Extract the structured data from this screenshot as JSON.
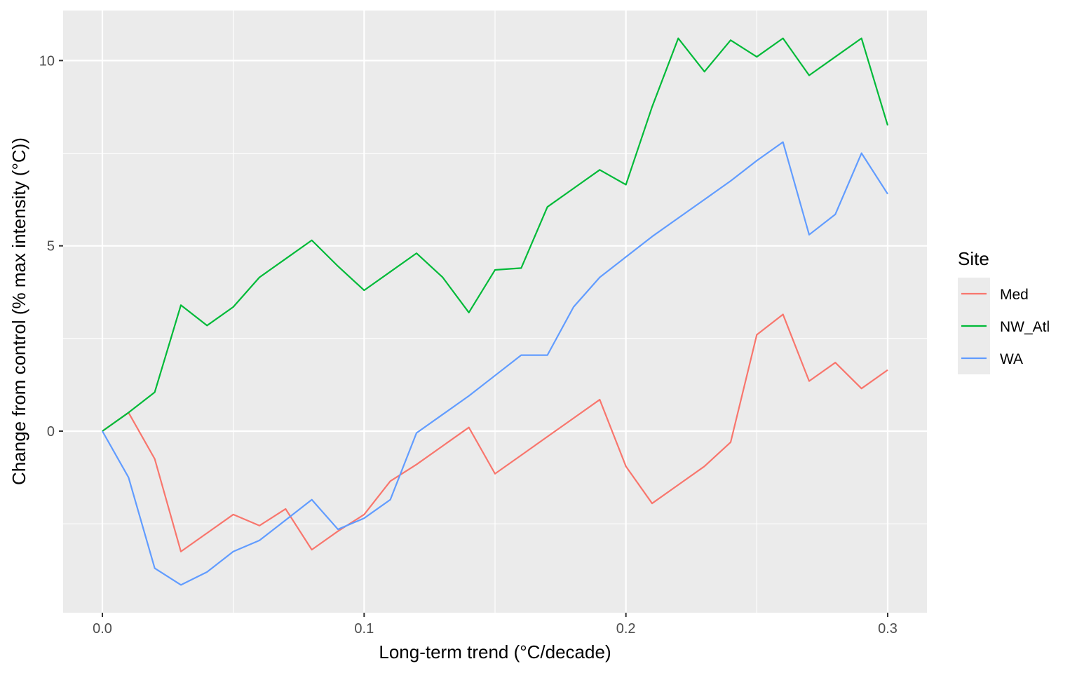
{
  "chart_data": {
    "type": "line",
    "xlabel": "Long-term trend (°C/decade)",
    "ylabel": "Change from control (% max intensity (°C))",
    "xlim": [
      -0.015,
      0.315
    ],
    "ylim": [
      -4.9,
      11.35
    ],
    "x_ticks": [
      0.0,
      0.1,
      0.2,
      0.3
    ],
    "x_tick_labels": [
      "0.0",
      "0.1",
      "0.2",
      "0.3"
    ],
    "y_ticks": [
      0,
      5,
      10
    ],
    "y_tick_labels": [
      "0",
      "5",
      "10"
    ],
    "x_minor_ticks": [
      0.05,
      0.15,
      0.25
    ],
    "y_minor_ticks": [
      -2.5,
      2.5,
      7.5
    ],
    "grid": true,
    "panel_background": "#ebebeb",
    "legend": {
      "title": "Site",
      "position": "right"
    },
    "x": [
      0.0,
      0.01,
      0.02,
      0.03,
      0.04,
      0.05,
      0.06,
      0.07,
      0.08,
      0.09,
      0.1,
      0.11,
      0.12,
      0.13,
      0.14,
      0.15,
      0.16,
      0.17,
      0.18,
      0.19,
      0.2,
      0.21,
      0.22,
      0.23,
      0.24,
      0.25,
      0.26,
      0.27,
      0.28,
      0.29,
      0.3
    ],
    "series": [
      {
        "name": "Med",
        "color": "#F8766D",
        "values": [
          0.0,
          0.5,
          -0.75,
          -3.25,
          -2.75,
          -2.25,
          -2.55,
          -2.1,
          -3.2,
          -2.7,
          -2.25,
          -1.35,
          -0.9,
          -0.4,
          0.1,
          -1.15,
          -0.65,
          -0.15,
          0.35,
          0.85,
          -0.95,
          -1.95,
          -1.45,
          -0.95,
          -0.3,
          2.6,
          3.15,
          1.35,
          1.85,
          1.15,
          1.65
        ]
      },
      {
        "name": "NW_Atl",
        "color": "#00BA38",
        "values": [
          0.0,
          0.5,
          1.05,
          3.4,
          2.85,
          3.35,
          4.15,
          4.65,
          5.15,
          4.45,
          3.8,
          4.3,
          4.8,
          4.15,
          3.2,
          4.35,
          4.4,
          6.05,
          6.55,
          7.05,
          6.65,
          8.75,
          10.6,
          9.7,
          10.55,
          10.1,
          10.6,
          9.6,
          10.1,
          10.6,
          8.25
        ]
      },
      {
        "name": "WA",
        "color": "#619CFF",
        "values": [
          0.0,
          -1.25,
          -3.7,
          -4.15,
          -3.8,
          -3.25,
          -2.95,
          -2.4,
          -1.85,
          -2.65,
          -2.35,
          -1.85,
          -0.05,
          0.45,
          0.95,
          1.5,
          2.05,
          2.05,
          3.35,
          4.15,
          4.7,
          5.25,
          5.75,
          6.25,
          6.75,
          7.3,
          7.8,
          5.3,
          5.85,
          7.5,
          6.4
        ]
      }
    ]
  }
}
